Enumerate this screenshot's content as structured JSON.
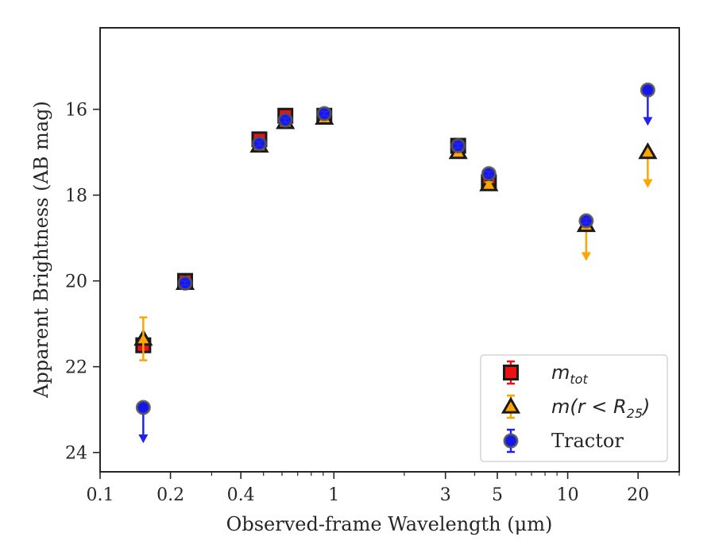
{
  "chart_data": {
    "type": "scatter",
    "xlabel": "Observed-frame Wavelength (μm)",
    "ylabel": "Apparent Brightness (AB mag)",
    "x_scale": "log",
    "xlim": [
      0.1,
      30
    ],
    "ylim": [
      24.45,
      14.1
    ],
    "y_inverted": true,
    "x_ticks": [
      0.1,
      0.2,
      0.4,
      1,
      3,
      5,
      10,
      20
    ],
    "x_tick_labels": [
      "0.1",
      "0.2",
      "0.4",
      "1",
      "3",
      "5",
      "10",
      "20"
    ],
    "x_minor_ticks": [
      0.3,
      0.5,
      0.6,
      0.7,
      0.8,
      0.9,
      2,
      4,
      6,
      7,
      8,
      9,
      30
    ],
    "y_ticks": [
      16,
      18,
      20,
      22,
      24
    ],
    "y_tick_labels": [
      "16",
      "18",
      "20",
      "22",
      "24"
    ],
    "legend": {
      "position": "lower right",
      "entries": [
        {
          "label": "m_tot",
          "label_main": "m",
          "label_sub": "tot",
          "label_post": ""
        },
        {
          "label": "m(r < R_25)",
          "label_main": "m(r < R",
          "label_sub": "25",
          "label_post": ")"
        },
        {
          "label": "Tractor",
          "label_main": "Tractor",
          "label_sub": "",
          "label_post": ""
        }
      ]
    },
    "series": [
      {
        "name": "m_tot",
        "marker": "square",
        "color": "#ee1111",
        "edge_color": "#1a1a1a",
        "errbar_color": "#ee1111",
        "points": [
          {
            "x": 0.153,
            "y": 21.5,
            "err": 0.1
          },
          {
            "x": 0.231,
            "y": 20.0,
            "err": 0.06
          },
          {
            "x": 0.48,
            "y": 16.7,
            "err": 0.05
          },
          {
            "x": 0.62,
            "y": 16.15,
            "err": 0.05
          },
          {
            "x": 0.91,
            "y": 16.15,
            "err": 0.05
          },
          {
            "x": 3.4,
            "y": 16.85,
            "err": 0.05
          },
          {
            "x": 4.6,
            "y": 17.7,
            "err": 0.05
          }
        ]
      },
      {
        "name": "m(r < R_25)",
        "marker": "triangle",
        "color": "#ffa500",
        "edge_color": "#1a1a1a",
        "errbar_color": "#ffa500",
        "points": [
          {
            "x": 0.153,
            "y": 21.35,
            "err": 0.5
          },
          {
            "x": 0.231,
            "y": 20.05,
            "err": 0.05
          },
          {
            "x": 0.48,
            "y": 16.85,
            "err": 0.05
          },
          {
            "x": 0.62,
            "y": 16.3,
            "err": 0.05
          },
          {
            "x": 0.91,
            "y": 16.2,
            "err": 0.05
          },
          {
            "x": 3.4,
            "y": 17.0,
            "err": 0.05
          },
          {
            "x": 4.6,
            "y": 17.75,
            "err": 0.05
          },
          {
            "x": 12.0,
            "y": 18.7,
            "err": 0.0,
            "upper_limit": true
          },
          {
            "x": 22.0,
            "y": 17.0,
            "err": 0.0,
            "upper_limit": true
          }
        ]
      },
      {
        "name": "Tractor",
        "marker": "circle",
        "color": "#1515ee",
        "edge_color": "#555555",
        "errbar_color": "#2222ee",
        "points": [
          {
            "x": 0.153,
            "y": 22.95,
            "err": 0.0,
            "upper_limit": true
          },
          {
            "x": 0.231,
            "y": 20.05,
            "err": 0.05
          },
          {
            "x": 0.48,
            "y": 16.8,
            "err": 0.05
          },
          {
            "x": 0.62,
            "y": 16.25,
            "err": 0.05
          },
          {
            "x": 0.91,
            "y": 16.1,
            "err": 0.05
          },
          {
            "x": 3.4,
            "y": 16.85,
            "err": 0.05
          },
          {
            "x": 4.6,
            "y": 17.5,
            "err": 0.05
          },
          {
            "x": 12.0,
            "y": 18.6,
            "err": 0.05
          },
          {
            "x": 22.0,
            "y": 15.55,
            "err": 0.0,
            "upper_limit": true
          }
        ]
      }
    ]
  }
}
